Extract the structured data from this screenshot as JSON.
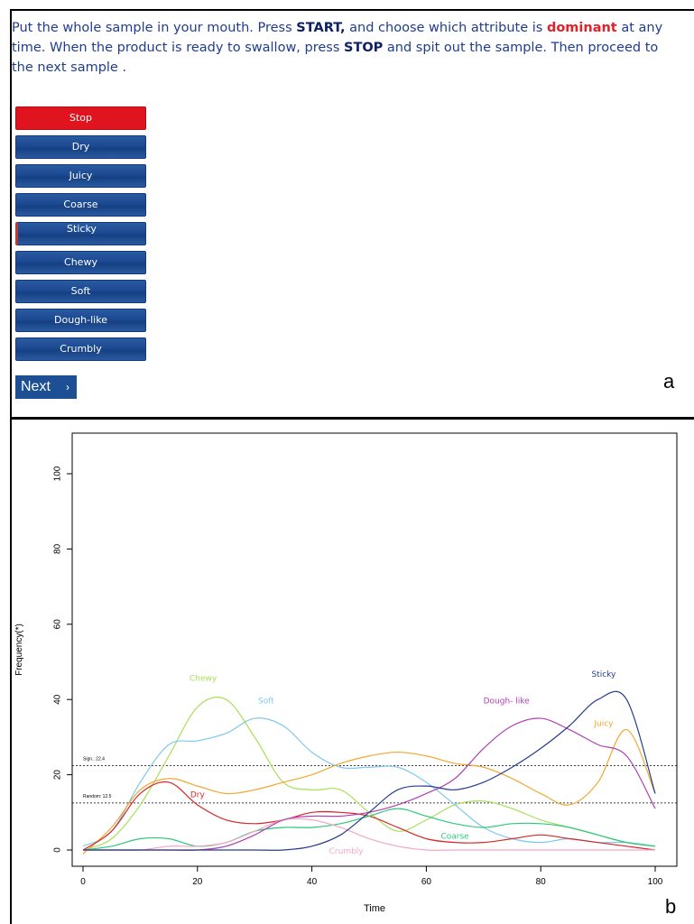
{
  "instruction": {
    "part1": "Put the whole sample in your mouth. Press ",
    "start": "START,",
    "part2": " and choose which attribute is ",
    "dominant": "dominant",
    "part3": " at any time. When the product is ready to swallow, press ",
    "stop": "STOP",
    "part4": " and spit out the sample. Then proceed to the next sample ."
  },
  "buttons": [
    "Stop",
    "Dry",
    "Juicy",
    "Coarse",
    "Sticky",
    "Chewy",
    "Soft",
    "Dough-like",
    "Crumbly"
  ],
  "next_label": "Next",
  "panel_a_label": "a",
  "panel_b_label": "b",
  "colors": {
    "stop": "#e0141f",
    "button": "#1b4a92",
    "instruction_text": "#1f3d8f",
    "dominant": "#e0222a"
  },
  "chart_data": {
    "type": "line",
    "xlabel": "Time",
    "ylabel": "Frequency(*)",
    "xlim": [
      0,
      100
    ],
    "ylim": [
      0,
      100
    ],
    "xticks": [
      0,
      20,
      40,
      60,
      80,
      100
    ],
    "yticks": [
      0,
      20,
      40,
      60,
      80,
      100
    ],
    "reference_lines": [
      {
        "label": "Sign.: 22.4",
        "value": 22.4
      },
      {
        "label": "Random: 12.5",
        "value": 12.5
      }
    ],
    "x": [
      0,
      5,
      10,
      15,
      20,
      25,
      30,
      35,
      40,
      45,
      50,
      55,
      60,
      65,
      70,
      75,
      80,
      85,
      90,
      95,
      100
    ],
    "series": [
      {
        "name": "Chewy",
        "color": "#a8e05a",
        "values": [
          0,
          3,
          12,
          25,
          38,
          40,
          30,
          18,
          16,
          16,
          10,
          5,
          8,
          12,
          13,
          11,
          8,
          6,
          4,
          2,
          1
        ]
      },
      {
        "name": "Soft",
        "color": "#7ec8ee",
        "values": [
          1,
          5,
          18,
          28,
          29,
          31,
          35,
          33,
          26,
          22,
          22,
          22,
          18,
          12,
          6,
          3,
          2,
          3,
          2,
          2,
          1
        ]
      },
      {
        "name": "Juicy",
        "color": "#f0a830",
        "values": [
          -1,
          6,
          16,
          19,
          17,
          15,
          16,
          18,
          20,
          23,
          25,
          26,
          25,
          23,
          22,
          19,
          15,
          12,
          18,
          32,
          15
        ]
      },
      {
        "name": "Dry",
        "color": "#d62828",
        "values": [
          0,
          5,
          15,
          18,
          12,
          8,
          7,
          8,
          10,
          10,
          9,
          6,
          3,
          2,
          2,
          3,
          4,
          3,
          2,
          1,
          0
        ]
      },
      {
        "name": "Coarse",
        "color": "#2cc87a",
        "values": [
          0,
          1,
          3,
          3,
          1,
          2,
          5,
          6,
          6,
          7,
          9,
          11,
          9,
          7,
          6,
          7,
          7,
          6,
          4,
          2,
          1
        ]
      },
      {
        "name": "Crumbly",
        "color": "#f4a6c8",
        "values": [
          0,
          0,
          0,
          1,
          1,
          2,
          5,
          8,
          8,
          6,
          3,
          1,
          0,
          0,
          0,
          0,
          0,
          0,
          0,
          0,
          0
        ]
      },
      {
        "name": "Dough- like",
        "color": "#b040b0",
        "values": [
          0,
          0,
          0,
          0,
          0,
          1,
          4,
          8,
          9,
          9,
          10,
          12,
          15,
          19,
          27,
          33,
          35,
          32,
          28,
          25,
          11
        ]
      },
      {
        "name": "Sticky",
        "color": "#283c8c",
        "values": [
          0,
          0,
          0,
          0,
          0,
          0,
          0,
          0,
          1,
          4,
          10,
          16,
          17,
          16,
          18,
          22,
          27,
          33,
          40,
          40,
          15
        ]
      }
    ],
    "series_labels": [
      {
        "name": "Chewy",
        "x": 21,
        "y": 45
      },
      {
        "name": "Soft",
        "x": 32,
        "y": 39
      },
      {
        "name": "Juicy",
        "x": 91,
        "y": 33
      },
      {
        "name": "Dry",
        "x": 20,
        "y": 14
      },
      {
        "name": "Coarse",
        "x": 65,
        "y": 3
      },
      {
        "name": "Crumbly",
        "x": 46,
        "y": -1
      },
      {
        "name": "Dough- like",
        "x": 74,
        "y": 39
      },
      {
        "name": "Sticky",
        "x": 91,
        "y": 46
      }
    ]
  }
}
